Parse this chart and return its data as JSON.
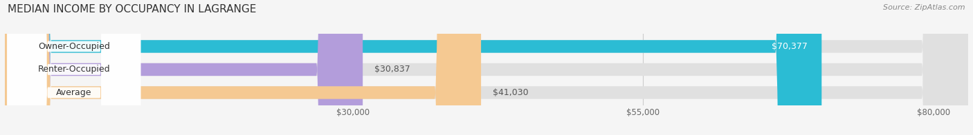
{
  "title": "MEDIAN INCOME BY OCCUPANCY IN LAGRANGE",
  "source": "Source: ZipAtlas.com",
  "categories": [
    "Owner-Occupied",
    "Renter-Occupied",
    "Average"
  ],
  "values": [
    70377,
    30837,
    41030
  ],
  "bar_colors": [
    "#2bbcd4",
    "#b39ddb",
    "#f5c992"
  ],
  "value_labels": [
    "$70,377",
    "$30,837",
    "$41,030"
  ],
  "x_ticks": [
    30000,
    55000,
    80000
  ],
  "x_tick_labels": [
    "$30,000",
    "$55,000",
    "$80,000"
  ],
  "xlim": [
    0,
    83000
  ],
  "bar_height": 0.55,
  "background_color": "#f5f5f5",
  "bar_bg_color": "#e0e0e0",
  "title_fontsize": 11,
  "label_fontsize": 9,
  "tick_fontsize": 8.5,
  "source_fontsize": 8
}
